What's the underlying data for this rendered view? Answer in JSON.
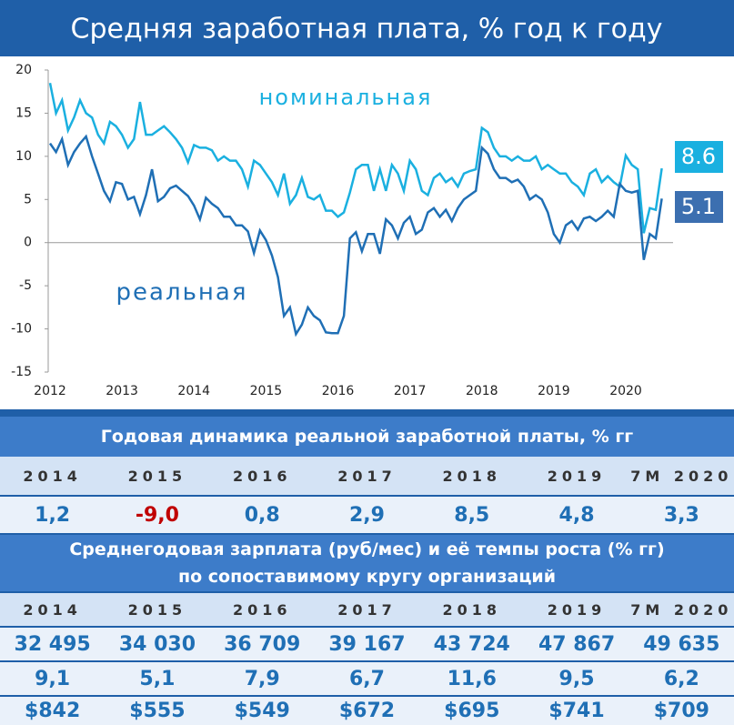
{
  "chart_data": {
    "type": "line",
    "title": "Средняя заработная плата, % год к году",
    "categories": [
      "2012",
      null,
      null,
      null,
      null,
      null,
      null,
      null,
      null,
      null,
      null,
      null,
      "2013",
      null,
      null,
      null,
      null,
      null,
      null,
      null,
      null,
      null,
      null,
      null,
      "2014",
      null,
      null,
      null,
      null,
      null,
      null,
      null,
      null,
      null,
      null,
      null,
      "2015",
      null,
      null,
      null,
      null,
      null,
      null,
      null,
      null,
      null,
      null,
      null,
      "2016",
      null,
      null,
      null,
      null,
      null,
      null,
      null,
      null,
      null,
      null,
      null,
      "2017",
      null,
      null,
      null,
      null,
      null,
      null,
      null,
      null,
      null,
      null,
      null,
      "2018",
      null,
      null,
      null,
      null,
      null,
      null,
      null,
      null,
      null,
      null,
      null,
      "2019",
      null,
      null,
      null,
      null,
      null,
      null,
      null,
      null,
      null,
      null,
      null,
      "2020",
      null,
      null,
      null,
      null,
      null,
      null
    ],
    "series": [
      {
        "name": "номинальная",
        "color": "#1ab0e0",
        "end_label": "8.6",
        "values": [
          18.5,
          15,
          16.5,
          13,
          14.5,
          16.5,
          15,
          14.5,
          12.5,
          11.5,
          14,
          13.5,
          12.5,
          11,
          12,
          16.3,
          12.5,
          12.5,
          13,
          13.5,
          12.8,
          12,
          11,
          9.3,
          11.3,
          11,
          11,
          10.7,
          9.5,
          10,
          9.5,
          9.5,
          8.5,
          6.5,
          9.5,
          9,
          8,
          7,
          5.5,
          8,
          4.5,
          5.5,
          7.5,
          5.3,
          5,
          5.5,
          3.7,
          3.7,
          3,
          3.5,
          5.8,
          8.5,
          9,
          9,
          6,
          8.5,
          6,
          9,
          8,
          6,
          9.5,
          8.5,
          6,
          5.5,
          7.5,
          8,
          7,
          7.5,
          6.5,
          8,
          8.3,
          8.5,
          13.3,
          12.8,
          11,
          10,
          10,
          9.5,
          10,
          9.5,
          9.5,
          10,
          8.5,
          9,
          8.5,
          8,
          8,
          7,
          6.5,
          5.5,
          8,
          8.5,
          7,
          7.7,
          7,
          6.5,
          10.1,
          9,
          8.5,
          1.1,
          4,
          3.8,
          8.6
        ]
      },
      {
        "name": "реальная",
        "color": "#1f6fb5",
        "end_label": "5.1",
        "values": [
          11.5,
          10.5,
          12,
          9,
          10.5,
          11.5,
          12.3,
          10,
          8,
          6,
          4.8,
          7,
          6.8,
          5,
          5.3,
          3.3,
          5.5,
          8.5,
          4.8,
          5.3,
          6.3,
          6.6,
          6,
          5.4,
          4.3,
          2.7,
          5.2,
          4.5,
          4,
          3,
          3,
          2,
          2,
          1.3,
          -1.2,
          1.4,
          0.3,
          -1.5,
          -4,
          -8.5,
          -7.5,
          -10.6,
          -9.5,
          -7.5,
          -8.5,
          -9,
          -10.4,
          -10.5,
          -10.5,
          -8.5,
          0.5,
          1.2,
          -1,
          1,
          1,
          -1.3,
          2.7,
          2,
          0.5,
          2.3,
          3,
          1,
          1.5,
          3.5,
          4,
          3,
          3.8,
          2.5,
          4,
          5,
          5.5,
          6,
          11,
          10.3,
          8.5,
          7.5,
          7.5,
          7,
          7.3,
          6.5,
          5,
          5.5,
          5,
          3.5,
          1,
          0,
          2,
          2.5,
          1.5,
          2.8,
          3,
          2.5,
          3,
          3.7,
          3,
          6.8,
          6,
          5.8,
          6,
          -2,
          1,
          0.5,
          5.1
        ]
      }
    ],
    "ylim": [
      -15,
      20
    ],
    "yticks": [
      -15,
      -10,
      -5,
      0,
      5,
      10,
      15,
      20
    ],
    "grid": false
  },
  "tables": [
    {
      "title": "Годовая динамика реальной заработной платы, % гг",
      "header": [
        "2014",
        "2015",
        "2016",
        "2017",
        "2018",
        "2019",
        "7М 2020"
      ],
      "rows": [
        [
          "1,2",
          "-9,0",
          "0,8",
          "2,9",
          "8,5",
          "4,8",
          "3,3"
        ]
      ]
    },
    {
      "title": "Среднегодовая зарплата (руб/мес) и её темпы роста (% гг)  по сопоставимому кругу организаций",
      "header": [
        "2014",
        "2015",
        "2016",
        "2017",
        "2018",
        "2019",
        "7М 2020"
      ],
      "rows": [
        [
          "32 495",
          "34 030",
          "36 709",
          "39 167",
          "43 724",
          "47 867",
          "49 635"
        ],
        [
          "9,1",
          "5,1",
          "7,9",
          "6,7",
          "11,6",
          "9,5",
          "6,2"
        ],
        [
          "$842",
          "$555",
          "$549",
          "$672",
          "$695",
          "$741",
          "$709"
        ]
      ]
    }
  ]
}
